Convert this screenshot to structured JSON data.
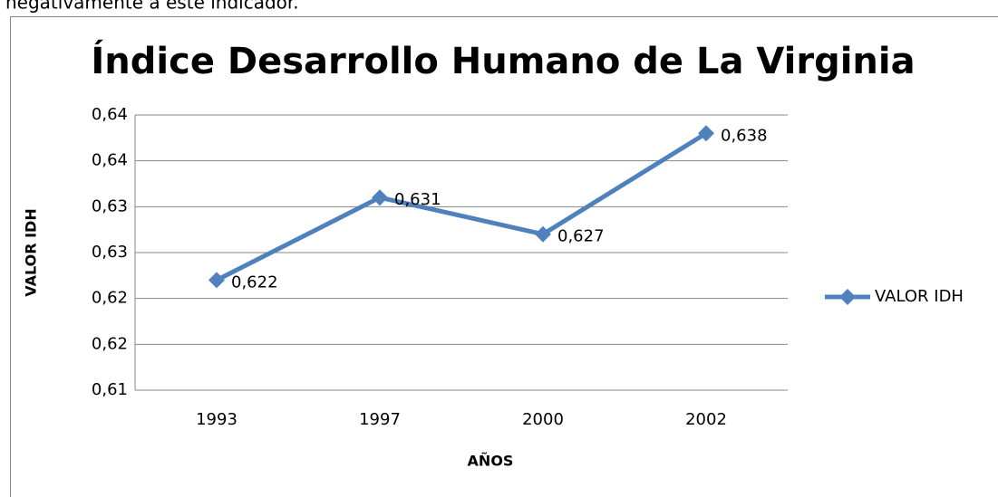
{
  "context_text": "negativamente a este indicador.",
  "chart_data": {
    "type": "line",
    "title": "Índice Desarrollo Humano de La Virginia",
    "x_label": "AÑOS",
    "y_label": "VALOR IDH",
    "categories": [
      "1993",
      "1997",
      "2000",
      "2002"
    ],
    "series": [
      {
        "name": "VALOR IDH",
        "color": "#4f81bd",
        "values": [
          0.622,
          0.631,
          0.627,
          0.638
        ],
        "value_labels": [
          "0,622",
          "0,631",
          "0,627",
          "0,638"
        ]
      }
    ],
    "ylim": [
      0.61,
      0.64
    ],
    "yticks": [
      {
        "value": 0.61,
        "label": "0,61"
      },
      {
        "value": 0.615,
        "label": "0,62"
      },
      {
        "value": 0.62,
        "label": "0,62"
      },
      {
        "value": 0.625,
        "label": "0,63"
      },
      {
        "value": 0.63,
        "label": "0,63"
      },
      {
        "value": 0.635,
        "label": "0,64"
      },
      {
        "value": 0.64,
        "label": "0,64"
      }
    ],
    "grid": true,
    "legend": "right"
  }
}
